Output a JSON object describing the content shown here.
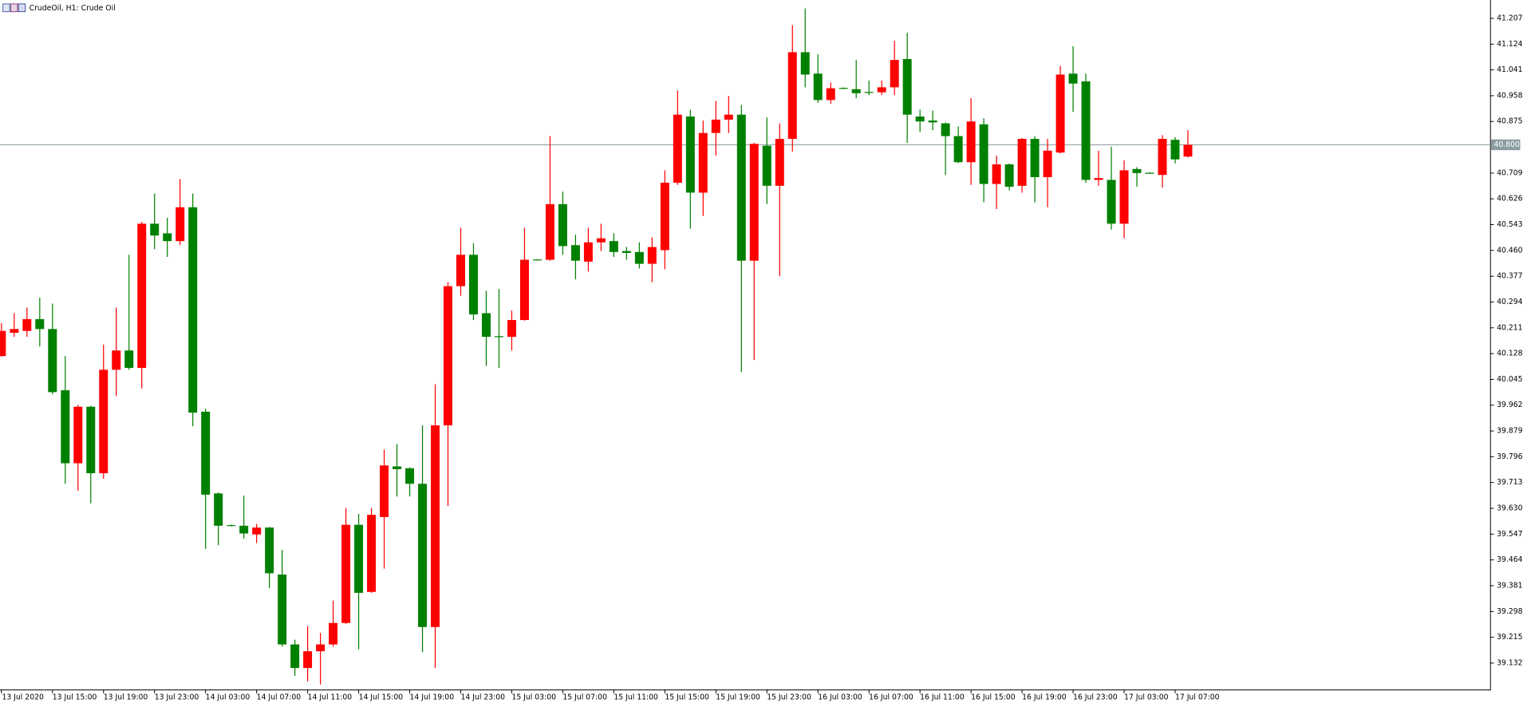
{
  "chart_data": {
    "type": "candlestick",
    "title": "CrudeOil, H1:  Crude Oil",
    "categories": [
      "13 Jul 2020",
      null,
      null,
      null,
      "13 Jul 15:00",
      null,
      null,
      null,
      "13 Jul 19:00",
      null,
      null,
      null,
      "13 Jul 23:00",
      null,
      null,
      null,
      "14 Jul 03:00",
      null,
      null,
      null,
      "14 Jul 07:00",
      null,
      null,
      null,
      "14 Jul 11:00",
      null,
      null,
      null,
      "14 Jul 15:00",
      null,
      null,
      null,
      "14 Jul 19:00",
      null,
      null,
      null,
      "14 Jul 23:00",
      null,
      null,
      null,
      "15 Jul 03:00",
      null,
      null,
      null,
      "15 Jul 07:00",
      null,
      null,
      null,
      "15 Jul 11:00",
      null,
      null,
      null,
      "15 Jul 15:00",
      null,
      null,
      null,
      "15 Jul 19:00",
      null,
      null,
      null,
      "15 Jul 23:00",
      null,
      null,
      null,
      "16 Jul 03:00",
      null,
      null,
      null,
      "16 Jul 07:00",
      null,
      null,
      null,
      "16 Jul 11:00",
      null,
      null,
      null,
      "16 Jul 15:00",
      null,
      null,
      null,
      "16 Jul 19:00",
      null,
      null,
      null,
      "16 Jul 23:00",
      null,
      null,
      null,
      "17 Jul 03:00",
      null,
      null,
      null,
      "17 Jul 07:00",
      null
    ],
    "open": [
      40.12,
      40.195,
      40.201,
      40.239,
      40.207,
      40.01,
      39.775,
      39.957,
      39.743,
      40.076,
      40.138,
      40.082,
      40.546,
      40.515,
      40.49,
      40.599,
      39.941,
      39.678,
      39.576,
      39.574,
      39.546,
      39.568,
      39.417,
      39.192,
      39.116,
      39.17,
      39.192,
      39.261,
      39.577,
      39.361,
      39.602,
      39.765,
      39.759,
      39.709,
      39.248,
      39.897,
      40.345,
      40.446,
      40.258,
      40.184,
      40.182,
      40.236,
      40.431,
      40.43,
      40.609,
      40.477,
      40.424,
      40.486,
      40.49,
      40.458,
      40.455,
      40.417,
      40.461,
      40.678,
      40.891,
      40.646,
      40.838,
      40.881,
      40.897,
      40.427,
      40.797,
      40.668,
      40.819,
      41.098,
      41.029,
      40.944,
      40.983,
      40.979,
      40.97,
      40.969,
      40.985,
      41.076,
      40.891,
      40.878,
      40.869,
      40.828,
      40.744,
      40.866,
      40.674,
      40.737,
      40.668,
      40.819,
      40.696,
      40.775,
      41.029,
      41.004,
      40.687,
      40.687,
      40.546,
      40.722,
      40.71,
      40.703,
      40.816,
      40.762
    ],
    "high": [
      40.226,
      40.258,
      40.276,
      40.308,
      40.289,
      40.12,
      39.963,
      39.96,
      40.157,
      40.276,
      40.446,
      40.552,
      40.643,
      40.565,
      40.69,
      40.643,
      39.95,
      39.681,
      39.578,
      39.671,
      39.58,
      39.57,
      39.496,
      39.207,
      39.251,
      39.229,
      39.333,
      39.631,
      39.612,
      39.631,
      39.819,
      39.837,
      39.762,
      39.897,
      40.029,
      40.358,
      40.533,
      40.483,
      40.33,
      40.336,
      40.267,
      40.533,
      40.432,
      40.828,
      40.649,
      40.511,
      40.533,
      40.546,
      40.515,
      40.471,
      40.486,
      40.502,
      40.718,
      40.975,
      40.913,
      40.878,
      40.941,
      40.957,
      40.928,
      40.806,
      40.888,
      40.869,
      41.185,
      41.239,
      41.091,
      41.001,
      40.985,
      41.073,
      41.007,
      41.007,
      41.135,
      41.16,
      40.913,
      40.91,
      40.872,
      40.859,
      40.95,
      40.885,
      40.765,
      40.74,
      40.822,
      40.828,
      40.819,
      41.054,
      41.117,
      41.029,
      40.781,
      40.794,
      40.75,
      40.728,
      40.712,
      40.831,
      40.825,
      40.847
    ],
    "low": [
      40.118,
      40.182,
      40.182,
      40.151,
      39.997,
      39.709,
      39.687,
      39.646,
      39.725,
      39.991,
      40.076,
      40.016,
      40.464,
      40.439,
      40.477,
      39.894,
      39.499,
      39.511,
      39.572,
      39.533,
      39.518,
      39.373,
      39.185,
      39.091,
      39.073,
      39.063,
      39.185,
      39.258,
      39.176,
      39.358,
      39.436,
      39.668,
      39.668,
      39.167,
      39.116,
      39.637,
      40.314,
      40.236,
      40.088,
      40.082,
      40.138,
      40.234,
      40.428,
      40.427,
      40.446,
      40.367,
      40.392,
      40.458,
      40.439,
      40.43,
      40.402,
      40.358,
      40.399,
      40.671,
      40.53,
      40.571,
      40.765,
      40.838,
      40.069,
      40.107,
      40.609,
      40.377,
      40.778,
      40.985,
      40.935,
      40.932,
      40.979,
      40.95,
      40.96,
      40.96,
      40.96,
      40.806,
      40.841,
      40.847,
      40.703,
      40.741,
      40.671,
      40.615,
      40.593,
      40.653,
      40.646,
      40.615,
      40.599,
      40.772,
      40.906,
      40.678,
      40.668,
      40.527,
      40.499,
      40.665,
      40.707,
      40.662,
      40.74,
      40.759
    ],
    "close": [
      40.201,
      40.207,
      40.239,
      40.207,
      40.004,
      39.775,
      39.957,
      39.743,
      40.076,
      40.138,
      40.082,
      40.546,
      40.508,
      40.49,
      40.599,
      39.938,
      39.674,
      39.574,
      39.574,
      39.549,
      39.568,
      39.421,
      39.192,
      39.116,
      39.17,
      39.192,
      39.261,
      39.577,
      39.358,
      39.609,
      39.768,
      39.756,
      39.709,
      39.248,
      39.897,
      40.345,
      40.446,
      40.254,
      40.182,
      40.182,
      40.236,
      40.43,
      40.429,
      40.609,
      40.474,
      40.427,
      40.486,
      40.499,
      40.455,
      40.452,
      40.417,
      40.471,
      40.678,
      40.897,
      40.646,
      40.838,
      40.881,
      40.897,
      40.427,
      40.803,
      40.668,
      40.819,
      41.098,
      41.026,
      40.944,
      40.982,
      40.981,
      40.966,
      40.968,
      40.985,
      41.073,
      40.897,
      40.875,
      40.872,
      40.828,
      40.744,
      40.875,
      40.674,
      40.737,
      40.665,
      40.819,
      40.696,
      40.781,
      41.026,
      40.997,
      40.687,
      40.693,
      40.546,
      40.718,
      40.709,
      40.709,
      40.819,
      40.753,
      40.8
    ],
    "up_color": "#ff0000",
    "down_color": "#008000",
    "ylim": [
      39.047,
      41.266
    ],
    "yticks": [
      41.207,
      41.124,
      41.041,
      40.958,
      40.875,
      40.709,
      40.626,
      40.543,
      {
        "value": 40.46,
        "label": "40.460"
      },
      40.377,
      40.294,
      40.211,
      40.128,
      40.045,
      39.962,
      39.879,
      39.796,
      39.713,
      {
        "value": 39.63,
        "label": "39.630"
      },
      39.547,
      39.464,
      39.381,
      39.298,
      39.215,
      39.132
    ],
    "last_price": {
      "value": 40.8,
      "label": "40.800"
    }
  }
}
